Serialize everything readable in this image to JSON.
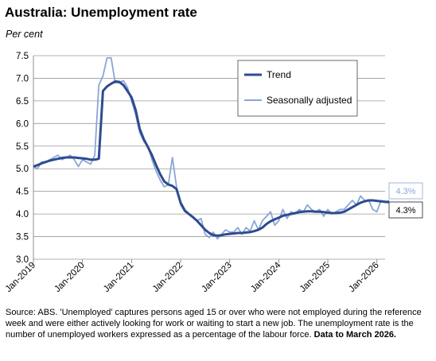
{
  "title": "Australia: Unemployment rate",
  "subtitle": "Per cent",
  "source_text": "Source: ABS. 'Unemployed' captures persons aged 15 or over who were not employed during the reference week and were either actively looking for work or waiting to start a new job. The unemployment rate is the number of unemployed workers expressed as a percentage of the labour force.",
  "source_bold": "Data to March 2026.",
  "colors": {
    "trend": "#2e4b8f",
    "seasonal": "#8aa6d6",
    "grid": "#999999"
  },
  "chart_data": {
    "type": "line",
    "title": "Australia: Unemployment rate",
    "ylabel": "Per cent",
    "ylim": [
      3.0,
      7.5
    ],
    "yticks": [
      "3.0",
      "3.5",
      "4.0",
      "4.5",
      "5.0",
      "5.5",
      "6.0",
      "6.5",
      "7.0",
      "7.5"
    ],
    "xticks": [
      "Jan-2019",
      "Jan-2020",
      "Jan-2021",
      "Jan-2022",
      "Jan-2023",
      "Jan-2024",
      "Jan-2025",
      "Jan-2026"
    ],
    "grid": true,
    "legend_position": "top-right",
    "x_start": "2019-01",
    "x_end": "2026-03",
    "series": [
      {
        "name": "Trend",
        "values": [
          5.05,
          5.08,
          5.12,
          5.15,
          5.18,
          5.2,
          5.22,
          5.24,
          5.25,
          5.25,
          5.25,
          5.24,
          5.23,
          5.22,
          5.2,
          5.2,
          5.22,
          6.72,
          6.82,
          6.88,
          6.93,
          6.92,
          6.85,
          6.72,
          6.58,
          6.3,
          5.88,
          5.65,
          5.48,
          5.3,
          5.08,
          4.88,
          4.72,
          4.65,
          4.62,
          4.55,
          4.25,
          4.08,
          4.0,
          3.93,
          3.85,
          3.75,
          3.65,
          3.58,
          3.53,
          3.52,
          3.53,
          3.55,
          3.56,
          3.57,
          3.58,
          3.58,
          3.59,
          3.6,
          3.62,
          3.65,
          3.7,
          3.78,
          3.84,
          3.88,
          3.92,
          3.96,
          3.98,
          4.0,
          4.02,
          4.04,
          4.05,
          4.06,
          4.06,
          4.05,
          4.05,
          4.04,
          4.03,
          4.02,
          4.02,
          4.03,
          4.05,
          4.1,
          4.15,
          4.2,
          4.25,
          4.28,
          4.3,
          4.3,
          4.29,
          4.28,
          4.27,
          4.26
        ],
        "end_label": "4.3%"
      },
      {
        "name": "Seasonally adjusted",
        "values": [
          5.05,
          5.0,
          5.15,
          5.15,
          5.2,
          5.25,
          5.3,
          5.2,
          5.25,
          5.3,
          5.2,
          5.05,
          5.2,
          5.15,
          5.1,
          5.3,
          6.85,
          7.05,
          7.45,
          7.45,
          6.9,
          6.9,
          6.95,
          6.8,
          6.5,
          6.2,
          5.8,
          5.6,
          5.5,
          5.2,
          4.95,
          4.75,
          4.6,
          4.65,
          5.25,
          4.6,
          4.2,
          4.05,
          4.0,
          3.95,
          3.85,
          3.9,
          3.55,
          3.48,
          3.6,
          3.45,
          3.55,
          3.65,
          3.6,
          3.6,
          3.7,
          3.55,
          3.7,
          3.62,
          3.85,
          3.65,
          3.85,
          3.95,
          4.05,
          3.75,
          3.85,
          4.1,
          3.9,
          4.05,
          4.0,
          4.1,
          4.05,
          4.2,
          4.1,
          4.05,
          4.1,
          3.95,
          4.1,
          4.0,
          4.05,
          4.1,
          4.1,
          4.2,
          4.3,
          4.2,
          4.4,
          4.3,
          4.3,
          4.1,
          4.05,
          4.3,
          4.25,
          4.3
        ],
        "end_label": "4.3%"
      }
    ]
  }
}
